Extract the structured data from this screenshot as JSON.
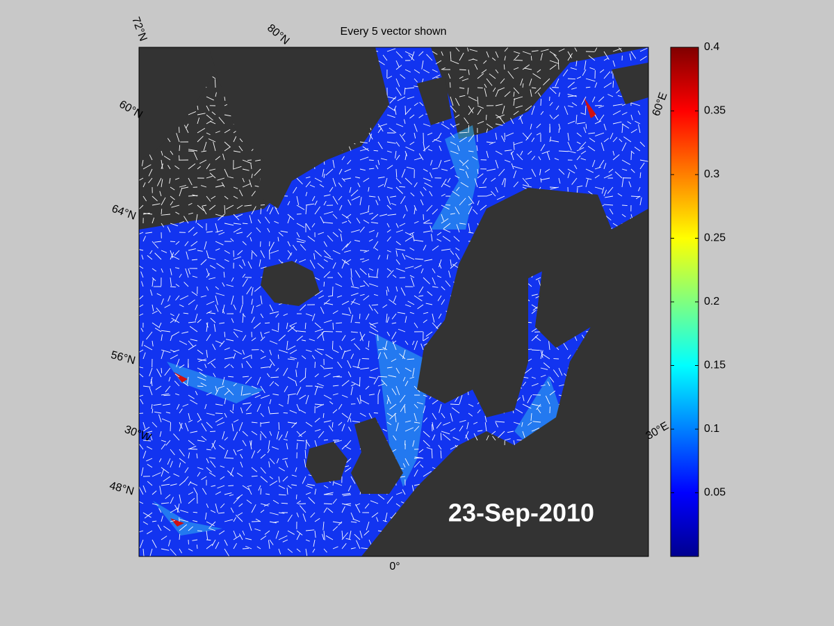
{
  "title": "Every 5 vector shown",
  "date_label": "23-Sep-2010",
  "graticule_labels": [
    "72°N",
    "80°N",
    "60°N",
    "64°N",
    "56°N",
    "30°W",
    "48°N",
    "0°",
    "30°E",
    "60°E"
  ],
  "colorbar": {
    "lim": [
      0,
      0.4
    ],
    "ticks": [
      0.05,
      0.1,
      0.15,
      0.2,
      0.25,
      0.3,
      0.35,
      0.4
    ]
  }
}
